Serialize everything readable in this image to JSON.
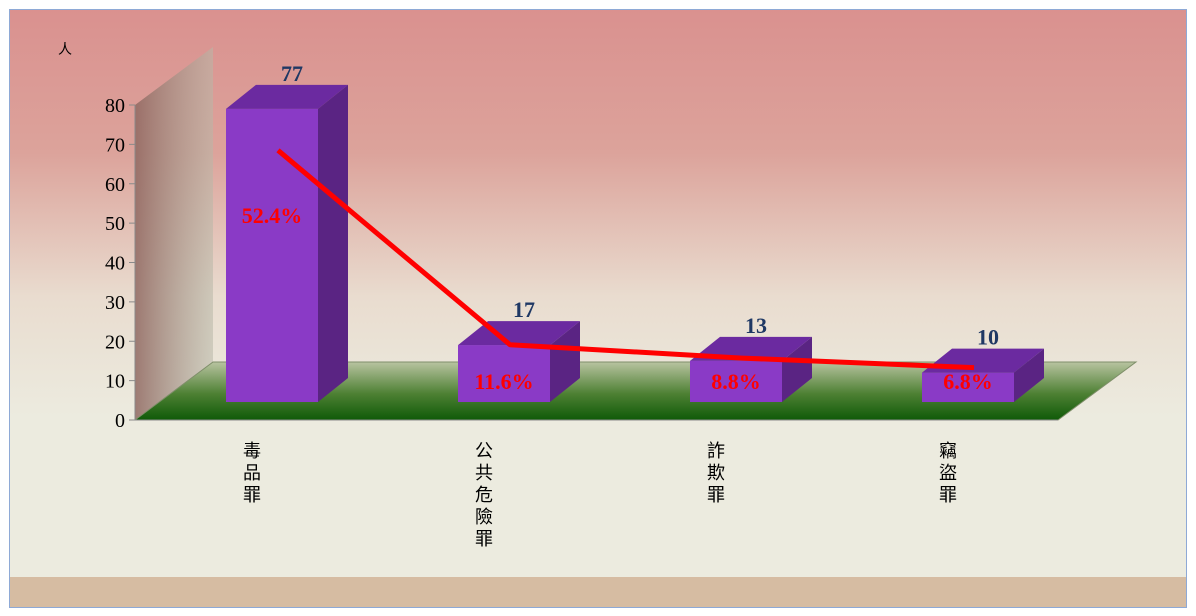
{
  "chart_data": {
    "type": "bar",
    "unit_label": "人",
    "categories": [
      "毒品罪",
      "公共危險罪",
      "詐欺罪",
      "竊盜罪"
    ],
    "values": [
      77,
      17,
      13,
      10
    ],
    "percent_labels": [
      "52.4%",
      "11.6%",
      "8.8%",
      "6.8%"
    ],
    "percent_values": [
      52.4,
      11.6,
      8.8,
      6.8
    ],
    "ylim": [
      0,
      80
    ],
    "yticks": [
      0,
      10,
      20,
      30,
      40,
      50,
      60,
      70,
      80
    ],
    "legend": "none",
    "grid": false
  },
  "colors": {
    "bar_front": "#8a3ac6",
    "bar_top": "#6b2aa0",
    "bar_side": "#5a2483",
    "value_label": "#1f3864",
    "percent_label": "#ff0000",
    "line": "#ff0000",
    "floor": "#2e6a18"
  }
}
